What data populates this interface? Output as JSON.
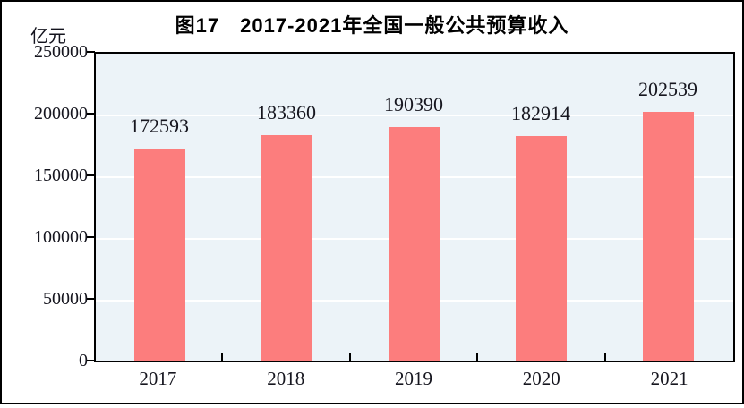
{
  "header": {
    "title": "图17　2017-2021年全国一般公共预算收入",
    "unit_label": "亿元"
  },
  "colors": {
    "bar": "#FC7D7D",
    "plot_bg": "#ECF3F8",
    "grid": "#FFFFFF",
    "axis": "#000000",
    "label_text": "#16161F",
    "title_text": "#000000"
  },
  "chart_data": {
    "type": "bar",
    "title": "图17 2017-2021年全国一般公共预算收入",
    "unit": "亿元",
    "xlabel": "",
    "ylabel": "亿元",
    "categories": [
      "2017",
      "2018",
      "2019",
      "2020",
      "2021"
    ],
    "values": [
      172593,
      183360,
      190390,
      182914,
      202539
    ],
    "data_labels": [
      "172593",
      "183360",
      "190390",
      "182914",
      "202539"
    ],
    "ylim": [
      0,
      250000
    ],
    "yticks": [
      0,
      50000,
      100000,
      150000,
      200000,
      250000
    ],
    "grid": true,
    "legend": false,
    "bar_color": "#FC7D7D",
    "plot_background": "#ECF3F8"
  }
}
